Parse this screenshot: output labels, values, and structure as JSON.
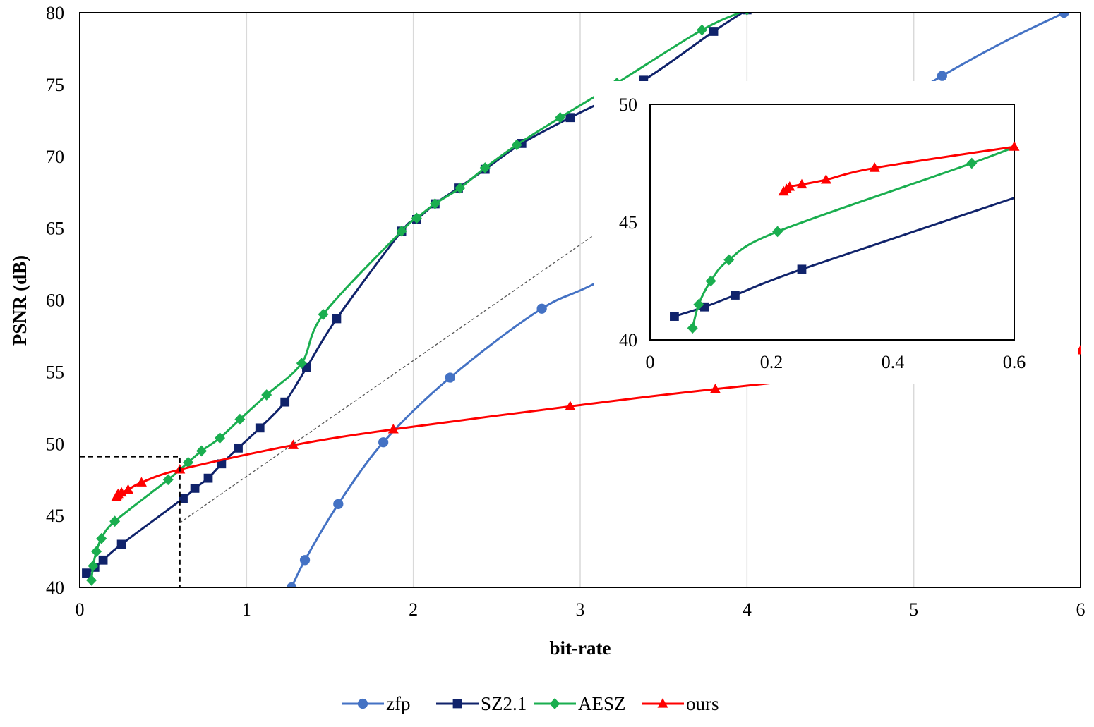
{
  "chart_data": {
    "type": "line",
    "xlabel": "bit-rate",
    "ylabel": "PSNR (dB)",
    "xlim": [
      0,
      6
    ],
    "ylim": [
      40,
      80
    ],
    "xticks": [
      "0",
      "1",
      "2",
      "3",
      "4",
      "5",
      "6"
    ],
    "yticks": [
      "40",
      "45",
      "50",
      "55",
      "60",
      "65",
      "70",
      "75",
      "80"
    ],
    "grid": "vertical",
    "legend_position": "bottom",
    "series": [
      {
        "name": "zfp",
        "color": "#4472C4",
        "marker": "circle",
        "x": [
          1.27,
          1.35,
          1.55,
          1.82,
          2.22,
          2.77,
          3.3,
          5.17,
          5.9
        ],
        "y": [
          40.0,
          41.9,
          45.8,
          50.1,
          54.6,
          59.4,
          62.5,
          75.6,
          80.0
        ]
      },
      {
        "name": "SZ2.1",
        "color": "#10236B",
        "marker": "square",
        "x": [
          0.04,
          0.09,
          0.14,
          0.25,
          0.62,
          0.69,
          0.77,
          0.85,
          0.95,
          1.08,
          1.23,
          1.36,
          1.54,
          1.93,
          2.02,
          2.13,
          2.27,
          2.43,
          2.65,
          2.94,
          3.38,
          3.8,
          4.0
        ],
        "y": [
          41.0,
          41.4,
          41.9,
          43.0,
          46.2,
          46.9,
          47.6,
          48.6,
          49.7,
          51.1,
          52.9,
          55.3,
          58.7,
          64.8,
          65.6,
          66.7,
          67.8,
          69.1,
          70.9,
          72.7,
          75.3,
          78.7,
          80.2
        ]
      },
      {
        "name": "AESZ",
        "color": "#1AAE4F",
        "marker": "diamond",
        "x": [
          0.07,
          0.08,
          0.1,
          0.13,
          0.21,
          0.53,
          0.65,
          0.73,
          0.84,
          0.96,
          1.12,
          1.33,
          1.46,
          1.93,
          2.02,
          2.13,
          2.28,
          2.43,
          2.62,
          2.88,
          3.22,
          3.73,
          4.0
        ],
        "y": [
          40.5,
          41.5,
          42.5,
          43.4,
          44.6,
          47.5,
          48.7,
          49.5,
          50.4,
          51.7,
          53.4,
          55.6,
          59.0,
          64.8,
          65.7,
          66.7,
          67.8,
          69.2,
          70.8,
          72.7,
          75.1,
          78.8,
          80.2
        ]
      },
      {
        "name": "ours",
        "color": "#FF0000",
        "marker": "triangle",
        "x": [
          0.22,
          0.225,
          0.23,
          0.25,
          0.29,
          0.37,
          0.6,
          1.28,
          1.88,
          2.94,
          3.81,
          6.0
        ],
        "y": [
          46.3,
          46.4,
          46.5,
          46.6,
          46.8,
          47.3,
          48.2,
          49.9,
          51.0,
          52.6,
          53.8,
          56.5
        ]
      }
    ],
    "inset": {
      "xlim": [
        0,
        0.6
      ],
      "ylim": [
        40,
        50
      ],
      "xticks": [
        "0",
        "0.2",
        "0.4",
        "0.6"
      ],
      "yticks": [
        "40",
        "45",
        "50"
      ]
    }
  }
}
